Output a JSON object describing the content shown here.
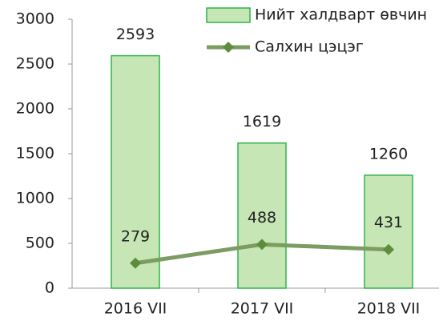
{
  "chart_data": {
    "type": "bar",
    "categories": [
      "2016 VII",
      "2017 VII",
      "2018 VII"
    ],
    "series": [
      {
        "name": "Нийт халдварт өвчин",
        "type": "bar",
        "color": "#c6e7b5",
        "edge_color": "#2fb34a",
        "values": [
          2593,
          1619,
          1260
        ]
      },
      {
        "name": "Салхин цэцэг",
        "type": "line",
        "color": "#7d9c62",
        "marker_color": "#5e8c3c",
        "values": [
          279,
          488,
          431
        ]
      }
    ],
    "ylim": [
      0,
      3000
    ],
    "yticks": [
      0,
      500,
      1000,
      1500,
      2000,
      2500,
      3000
    ],
    "grid": false,
    "legend": "top-right"
  }
}
